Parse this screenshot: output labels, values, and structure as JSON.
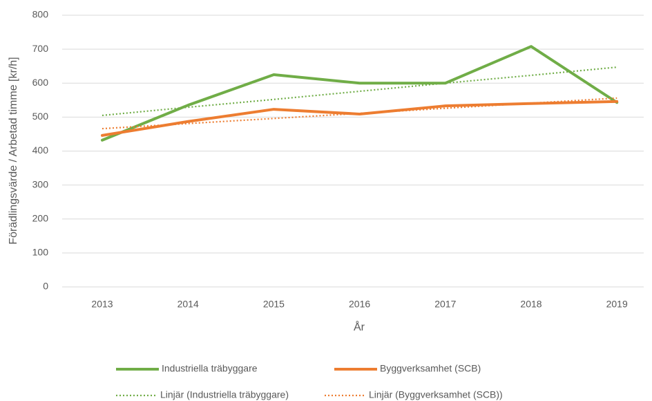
{
  "chart_data": {
    "type": "line",
    "x_label": "År",
    "y_label": "Förädlingsvärde / Arbetad timme [kr/h]",
    "categories": [
      "2013",
      "2014",
      "2015",
      "2016",
      "2017",
      "2018",
      "2019"
    ],
    "ylim": [
      0,
      800
    ],
    "yticks": [
      0,
      100,
      200,
      300,
      400,
      500,
      600,
      700,
      800
    ],
    "grid": true,
    "legend": "bottom",
    "series": [
      {
        "name": "Industriella träbyggare",
        "color": "#70ad47",
        "style": "solid",
        "values": [
          432,
          535,
          625,
          600,
          600,
          708,
          543
        ]
      },
      {
        "name": "Byggverksamhet (SCB)",
        "color": "#ed7d31",
        "style": "solid",
        "values": [
          446,
          487,
          523,
          509,
          533,
          540,
          546
        ]
      },
      {
        "name": "Linjär (Industriella träbyggare)",
        "color": "#70ad47",
        "style": "dotted",
        "values": [
          505,
          529,
          552,
          576,
          600,
          623,
          647
        ]
      },
      {
        "name": "Linjär (Byggverksamhet (SCB))",
        "color": "#ed7d31",
        "style": "dotted",
        "values": [
          466,
          481,
          496,
          511,
          526,
          541,
          556
        ]
      }
    ]
  }
}
